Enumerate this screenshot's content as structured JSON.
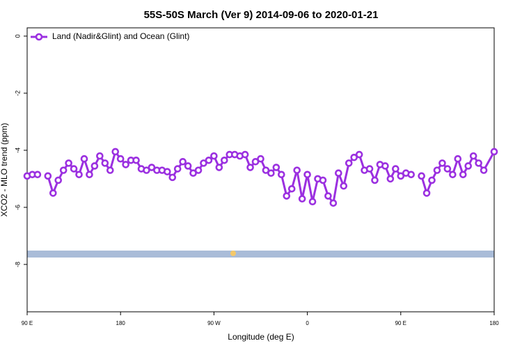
{
  "chart_data": {
    "type": "line",
    "title": "55S-50S March (Ver 9)   2014-09-06 to 2020-01-21",
    "xlabel": "Longitude (deg E)",
    "ylabel": "XCO2 - MLO trend (ppm)",
    "xlim": [
      90,
      540
    ],
    "ylim": [
      -9.66,
      0.29
    ],
    "xticks": [
      {
        "value": 90,
        "label": "90 E"
      },
      {
        "value": 180,
        "label": "180"
      },
      {
        "value": 270,
        "label": "90 W"
      },
      {
        "value": 360,
        "label": "0"
      },
      {
        "value": 450,
        "label": "90 E"
      },
      {
        "value": 540,
        "label": "180"
      }
    ],
    "yticks": [
      0,
      -2,
      -4,
      -6,
      -8
    ],
    "legend": "top-left",
    "x": [
      90,
      95,
      100,
      105,
      110,
      115,
      120,
      125,
      130,
      135,
      140,
      145,
      150,
      155,
      160,
      165,
      170,
      175,
      180,
      185,
      190,
      195,
      200,
      205,
      210,
      215,
      220,
      225,
      230,
      235,
      240,
      245,
      250,
      255,
      260,
      265,
      270,
      275,
      280,
      285,
      290,
      295,
      300,
      305,
      310,
      315,
      320,
      325,
      330,
      335,
      340,
      345,
      350,
      355,
      360,
      365,
      370,
      375,
      380,
      385,
      390,
      395,
      400,
      405,
      410,
      415,
      420,
      425,
      430,
      435,
      440,
      445,
      450,
      455,
      460,
      465,
      470,
      475,
      480,
      485,
      490,
      495,
      500,
      505,
      510,
      515,
      520,
      525,
      530,
      540
    ],
    "series": [
      {
        "name": "Land (Nadir&Glint) and Ocean (Glint)",
        "color": "#9b30e0",
        "values": [
          -4.9,
          -4.85,
          -4.85,
          null,
          -4.9,
          -5.5,
          -5.05,
          -4.7,
          -4.45,
          -4.65,
          -4.85,
          -4.3,
          -4.85,
          -4.55,
          -4.2,
          -4.45,
          -4.7,
          -4.05,
          -4.3,
          -4.5,
          -4.35,
          -4.35,
          -4.65,
          -4.7,
          -4.6,
          -4.7,
          -4.7,
          -4.75,
          -4.95,
          -4.65,
          -4.4,
          -4.55,
          -4.8,
          -4.7,
          -4.45,
          -4.35,
          -4.2,
          -4.6,
          -4.35,
          -4.15,
          -4.15,
          -4.2,
          -4.15,
          -4.6,
          -4.4,
          -4.3,
          -4.7,
          -4.8,
          -4.6,
          -4.85,
          -5.6,
          -5.35,
          -4.7,
          -5.7,
          -4.85,
          -5.8,
          -5.0,
          -5.05,
          -5.6,
          -5.85,
          -4.8,
          -5.25,
          -4.45,
          -4.25,
          -4.15,
          -4.7,
          -4.65,
          -5.05,
          -4.5,
          -4.55,
          -5.0,
          -4.65,
          -4.9,
          -4.8,
          -4.85,
          null,
          -4.9,
          -5.5,
          -5.05,
          -4.7,
          -4.45,
          -4.65,
          -4.85,
          -4.3,
          -4.85,
          -4.55,
          -4.2,
          -4.45,
          -4.7,
          -4.05
        ]
      }
    ]
  }
}
